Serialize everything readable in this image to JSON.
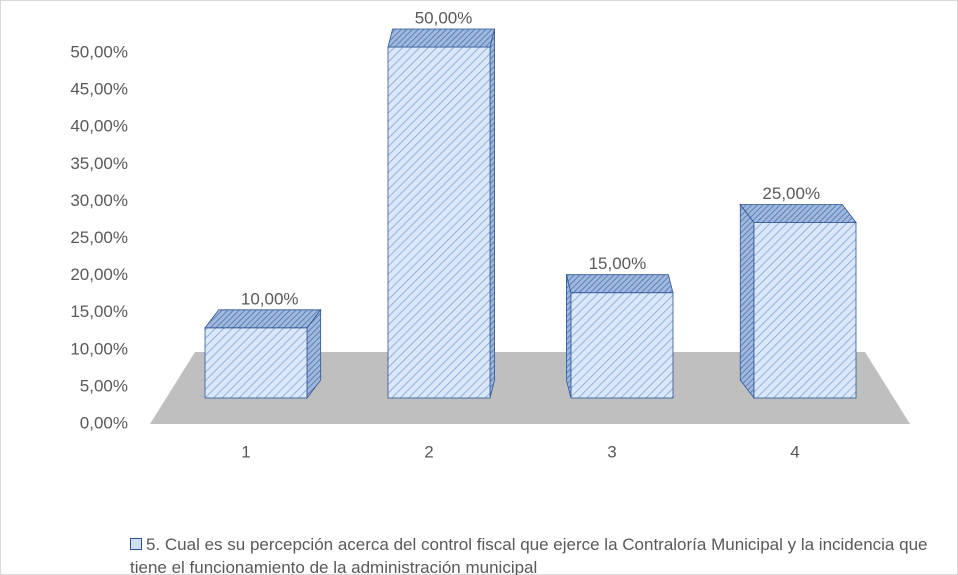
{
  "chart_data": {
    "type": "bar3d",
    "categories": [
      "1",
      "2",
      "3",
      "4"
    ],
    "series": [
      {
        "name": "5. Cual es su percepción acerca del control fiscal que ejerce la Contraloría Municipal y la incidencia que tiene el funcionamiento de la administración municipal",
        "color": "#cfe0f7",
        "values": [
          10,
          50,
          15,
          25
        ],
        "value_labels": [
          "10,00%",
          "50,00%",
          "15,00%",
          "25,00%"
        ]
      }
    ],
    "ylim": [
      0,
      50
    ],
    "yticks": [
      {
        "value": 0,
        "label": "0,00%"
      },
      {
        "value": 5,
        "label": "5,00%"
      },
      {
        "value": 10,
        "label": "10,00%"
      },
      {
        "value": 15,
        "label": "15,00%"
      },
      {
        "value": 20,
        "label": "20,00%"
      },
      {
        "value": 25,
        "label": "25,00%"
      },
      {
        "value": 30,
        "label": "30,00%"
      },
      {
        "value": 35,
        "label": "35,00%"
      },
      {
        "value": 40,
        "label": "40,00%"
      },
      {
        "value": 45,
        "label": "45,00%"
      },
      {
        "value": 50,
        "label": "50,00%"
      }
    ],
    "legend": "bottom"
  }
}
